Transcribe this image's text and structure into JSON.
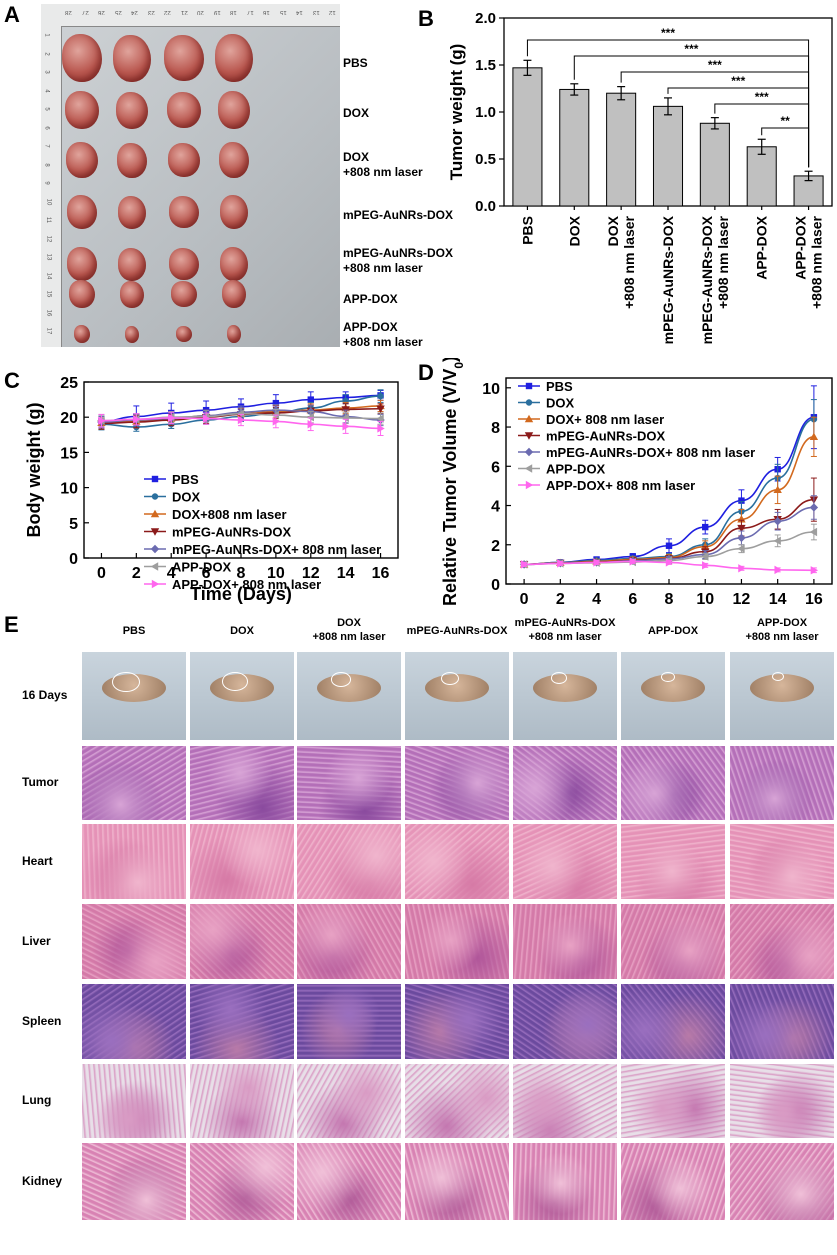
{
  "panels": {
    "A": {
      "letter": "A",
      "groups": [
        "PBS",
        "DOX",
        "DOX\n+808 nm laser",
        "mPEG-AuNRs-DOX",
        "mPEG-AuNRs-DOX\n+808 nm laser",
        "APP-DOX",
        "APP-DOX\n+808 nm laser"
      ],
      "ruler_top_numbers": [
        "28",
        "27",
        "26",
        "25",
        "24",
        "23",
        "22",
        "21",
        "20",
        "19",
        "18",
        "17",
        "16",
        "15",
        "14",
        "13",
        "12"
      ],
      "ruler_left_numbers": [
        "1",
        "2",
        "3",
        "4",
        "5",
        "6",
        "7",
        "8",
        "9",
        "10",
        "11",
        "12",
        "13",
        "14",
        "15",
        "16",
        "17"
      ]
    },
    "B": {
      "letter": "B"
    },
    "C": {
      "letter": "C"
    },
    "D": {
      "letter": "D"
    },
    "E": {
      "letter": "E",
      "columns": [
        "PBS",
        "DOX",
        "DOX\n+808 nm laser",
        "mPEG-AuNRs-DOX",
        "mPEG-AuNRs-DOX\n+808 nm laser",
        "APP-DOX",
        "APP-DOX\n+808 nm laser"
      ],
      "rows": [
        "16 Days",
        "Tumor",
        "Heart",
        "Liver",
        "Spleen",
        "Lung",
        "Kidney"
      ]
    }
  },
  "chart_data": [
    {
      "id": "B",
      "type": "bar",
      "title": "",
      "xlabel": "",
      "ylabel": "Tumor weight (g)",
      "ylim": [
        0,
        2.0
      ],
      "yticks": [
        "0.0",
        "0.5",
        "1.0",
        "1.5",
        "2.0"
      ],
      "categories": [
        "PBS",
        "DOX",
        "DOX\n+808 nm laser",
        "mPEG-AuNRs-DOX",
        "mPEG-AuNRs-DOX\n+808 nm laser",
        "APP-DOX",
        "APP-DOX\n+808 nm laser"
      ],
      "values": [
        1.47,
        1.24,
        1.2,
        1.06,
        0.88,
        0.63,
        0.32
      ],
      "errors": [
        0.08,
        0.06,
        0.07,
        0.09,
        0.06,
        0.08,
        0.05
      ],
      "significance": [
        {
          "from": 0,
          "to": 6,
          "label": "***"
        },
        {
          "from": 1,
          "to": 6,
          "label": "***"
        },
        {
          "from": 2,
          "to": 6,
          "label": "***"
        },
        {
          "from": 3,
          "to": 6,
          "label": "***"
        },
        {
          "from": 4,
          "to": 6,
          "label": "***"
        },
        {
          "from": 5,
          "to": 6,
          "label": "**"
        }
      ],
      "bar_color": "#c0c0c0"
    },
    {
      "id": "C",
      "type": "line",
      "xlabel": "Time (Days)",
      "ylabel": "Body weight (g)",
      "xlim": [
        -1,
        17
      ],
      "ylim": [
        0,
        25
      ],
      "xticks": [
        "0",
        "2",
        "4",
        "6",
        "8",
        "10",
        "12",
        "14",
        "16"
      ],
      "yticks": [
        "0",
        "5",
        "10",
        "15",
        "20",
        "25"
      ],
      "x": [
        0,
        2,
        4,
        6,
        8,
        10,
        12,
        14,
        16
      ],
      "legend_position": "center",
      "series": [
        {
          "name": "PBS",
          "color": "#1f1fe0",
          "marker": "square",
          "values": [
            19.4,
            20.1,
            20.6,
            21.0,
            21.5,
            22.0,
            22.5,
            22.8,
            23.1
          ],
          "errors": [
            0.9,
            1.5,
            1.4,
            1.3,
            1.1,
            1.2,
            1.1,
            0.8,
            0.7
          ]
        },
        {
          "name": "DOX",
          "color": "#2a6f9e",
          "marker": "circle",
          "values": [
            19.0,
            18.6,
            19.0,
            19.6,
            20.1,
            20.6,
            21.3,
            22.3,
            23.0
          ],
          "errors": [
            0.8,
            0.6,
            0.6,
            0.6,
            0.7,
            0.7,
            0.8,
            0.9,
            0.9
          ]
        },
        {
          "name": "DOX+808 nm laser",
          "color": "#d2691e",
          "marker": "triangle-up",
          "values": [
            19.2,
            19.4,
            19.8,
            20.2,
            20.5,
            20.8,
            21.0,
            21.3,
            21.6
          ],
          "errors": [
            0.9,
            0.9,
            0.8,
            0.8,
            0.8,
            0.9,
            0.9,
            0.8,
            0.8
          ]
        },
        {
          "name": "mPEG-AuNRs-DOX",
          "color": "#8b1a1a",
          "marker": "triangle-down",
          "values": [
            19.1,
            19.3,
            19.6,
            20.0,
            20.4,
            20.6,
            20.9,
            21.1,
            21.2
          ],
          "errors": [
            0.8,
            0.8,
            0.8,
            0.9,
            0.8,
            0.8,
            0.8,
            0.8,
            0.7
          ]
        },
        {
          "name": "mPEG-AuNRs-DOX+ 808 nm laser",
          "color": "#6b6bb0",
          "marker": "diamond",
          "values": [
            19.3,
            19.6,
            19.8,
            20.2,
            20.7,
            21.0,
            20.8,
            20.1,
            19.6
          ],
          "errors": [
            0.8,
            0.8,
            0.8,
            0.8,
            0.9,
            0.8,
            0.9,
            0.9,
            0.8
          ]
        },
        {
          "name": "APP-DOX",
          "color": "#9e9e9e",
          "marker": "triangle-left",
          "values": [
            19.5,
            19.7,
            20.0,
            20.1,
            20.5,
            20.3,
            20.0,
            19.9,
            19.8
          ],
          "errors": [
            0.8,
            0.8,
            0.8,
            0.8,
            0.8,
            0.8,
            0.8,
            0.8,
            0.8
          ]
        },
        {
          "name": "APP-DOX+ 808 nm laser",
          "color": "#ff66ee",
          "marker": "triangle-right",
          "values": [
            19.5,
            19.7,
            19.9,
            19.8,
            19.6,
            19.4,
            19.0,
            18.7,
            18.4
          ],
          "errors": [
            0.9,
            0.8,
            0.8,
            0.8,
            0.8,
            0.9,
            0.9,
            1.0,
            1.0
          ]
        }
      ]
    },
    {
      "id": "D",
      "type": "line",
      "xlabel": "Time (Days)",
      "ylabel": "Relative Tumor Volume (V/V",
      "ylabel_sub": "0",
      "ylabel_close": ")",
      "xlim": [
        -1,
        17
      ],
      "ylim": [
        0,
        10.5
      ],
      "xticks": [
        "0",
        "2",
        "4",
        "6",
        "8",
        "10",
        "12",
        "14",
        "16"
      ],
      "yticks": [
        "0",
        "2",
        "4",
        "6",
        "8",
        "10"
      ],
      "x": [
        0,
        2,
        4,
        6,
        8,
        10,
        12,
        14,
        16
      ],
      "legend_position": "top-left",
      "series": [
        {
          "name": "PBS",
          "color": "#1f1fe0",
          "marker": "square",
          "values": [
            1.0,
            1.1,
            1.25,
            1.4,
            1.95,
            2.9,
            4.25,
            5.85,
            8.5
          ],
          "errors": [
            0.1,
            0.1,
            0.12,
            0.15,
            0.35,
            0.35,
            0.55,
            0.6,
            1.6
          ]
        },
        {
          "name": "DOX",
          "color": "#2a6f9e",
          "marker": "circle",
          "values": [
            1.0,
            1.1,
            1.2,
            1.3,
            1.4,
            2.0,
            3.7,
            5.4,
            8.4
          ],
          "errors": [
            0.1,
            0.1,
            0.1,
            0.12,
            0.15,
            0.3,
            0.5,
            0.7,
            1.0
          ]
        },
        {
          "name": "DOX+ 808 nm laser",
          "color": "#d2691e",
          "marker": "triangle-up",
          "values": [
            1.0,
            1.08,
            1.15,
            1.25,
            1.35,
            1.9,
            3.3,
            4.8,
            7.5
          ],
          "errors": [
            0.1,
            0.1,
            0.1,
            0.12,
            0.15,
            0.3,
            0.5,
            0.7,
            1.0
          ]
        },
        {
          "name": "mPEG-AuNRs-DOX",
          "color": "#8b1a1a",
          "marker": "triangle-down",
          "values": [
            1.0,
            1.07,
            1.12,
            1.2,
            1.3,
            1.65,
            2.85,
            3.3,
            4.3
          ],
          "errors": [
            0.1,
            0.1,
            0.1,
            0.1,
            0.12,
            0.25,
            0.4,
            0.5,
            1.1
          ]
        },
        {
          "name": "mPEG-AuNRs-DOX+ 808 nm laser",
          "color": "#6b6bb0",
          "marker": "diamond",
          "values": [
            1.0,
            1.06,
            1.1,
            1.18,
            1.28,
            1.5,
            2.35,
            3.2,
            3.9
          ],
          "errors": [
            0.1,
            0.1,
            0.1,
            0.1,
            0.12,
            0.2,
            0.35,
            0.45,
            0.6
          ]
        },
        {
          "name": "APP-DOX",
          "color": "#9e9e9e",
          "marker": "triangle-left",
          "values": [
            1.0,
            1.05,
            1.08,
            1.12,
            1.2,
            1.4,
            1.8,
            2.2,
            2.65
          ],
          "errors": [
            0.1,
            0.1,
            0.1,
            0.1,
            0.1,
            0.15,
            0.2,
            0.3,
            0.4
          ]
        },
        {
          "name": "APP-DOX+ 808 nm laser",
          "color": "#ff66ee",
          "marker": "triangle-right",
          "values": [
            1.0,
            1.05,
            1.1,
            1.15,
            1.1,
            0.95,
            0.8,
            0.72,
            0.7
          ],
          "errors": [
            0.1,
            0.1,
            0.1,
            0.1,
            0.1,
            0.1,
            0.1,
            0.1,
            0.12
          ]
        }
      ]
    }
  ]
}
